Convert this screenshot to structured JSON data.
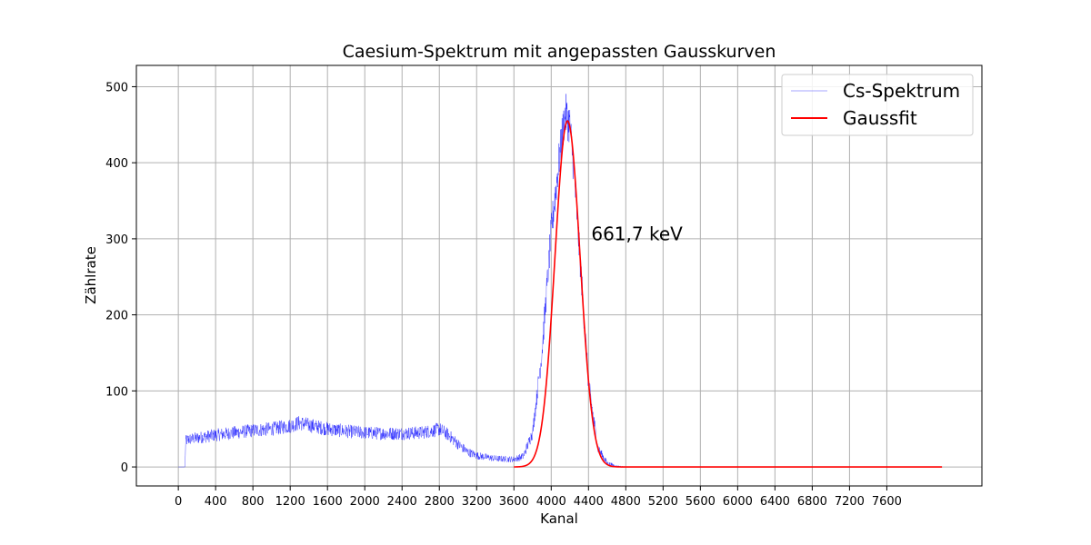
{
  "chart_data": {
    "type": "line",
    "title": "Caesium-Spektrum mit angepassten Gausskurven",
    "xlabel": "Kanal",
    "ylabel": "Zählrate",
    "xlim": [
      -450,
      8620
    ],
    "ylim": [
      -25,
      528
    ],
    "xticks": [
      0,
      400,
      800,
      1200,
      1600,
      2000,
      2400,
      2800,
      3200,
      3600,
      4000,
      4400,
      4800,
      5200,
      5600,
      6000,
      6400,
      6800,
      7200,
      7600
    ],
    "yticks": [
      0,
      100,
      200,
      300,
      400,
      500
    ],
    "grid": true,
    "legend_position": "top-right",
    "annotation": {
      "text": "661,7 keV",
      "x": 4430,
      "y": 298
    },
    "series": [
      {
        "name": "Cs-Spektrum",
        "color": "#0000ff",
        "noisy": true,
        "x": [
          0,
          70,
          80,
          100,
          200,
          400,
          600,
          800,
          1000,
          1200,
          1300,
          1400,
          1600,
          1800,
          2000,
          2200,
          2400,
          2600,
          2750,
          2800,
          2900,
          3000,
          3100,
          3200,
          3400,
          3600,
          3700,
          3800,
          3900,
          4000,
          4100,
          4150,
          4200,
          4250,
          4300,
          4400,
          4500,
          4600,
          4700,
          4800,
          5200,
          6000,
          7000,
          8192
        ],
        "y": [
          0,
          0,
          34,
          36,
          38,
          42,
          45,
          48,
          50,
          54,
          58,
          55,
          50,
          47,
          45,
          44,
          44,
          45,
          48,
          50,
          42,
          30,
          20,
          15,
          11,
          10,
          14,
          45,
          150,
          310,
          420,
          465,
          450,
          380,
          290,
          110,
          25,
          5,
          1,
          0,
          0,
          0,
          0,
          0
        ]
      },
      {
        "name": "Gaussfit",
        "color": "#ff0000",
        "fit": {
          "amplitude": 455,
          "mean": 4175,
          "sigma": 135,
          "x_start": 3600,
          "x_end": 8192
        }
      }
    ]
  }
}
